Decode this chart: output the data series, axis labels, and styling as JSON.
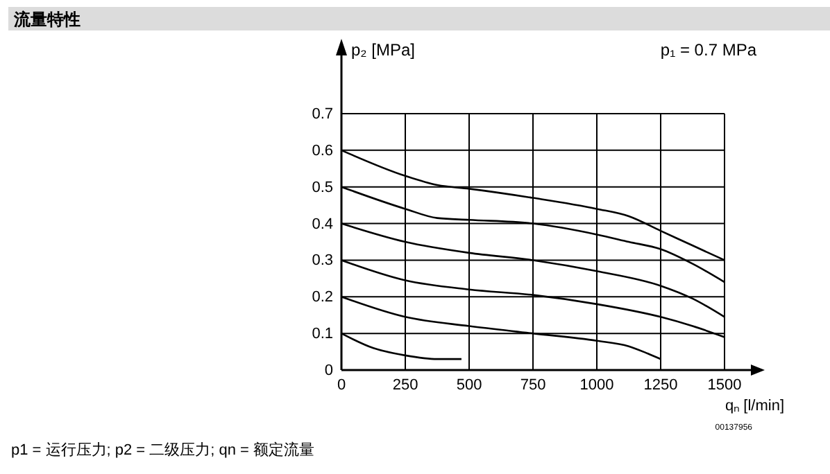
{
  "chart_data": {
    "type": "line",
    "title": "流量特性",
    "xlabel": "qₙ [l/min]",
    "ylabel": "p₂ [MPa]",
    "annotations": [
      "p₁ = 0.7 MPa",
      "00137956",
      "p1 = 运行压力; p2 = 二级压力; qn = 额定流量"
    ],
    "xlim": [
      0,
      1500
    ],
    "xticks": [
      0,
      250,
      500,
      750,
      1000,
      1250,
      1500
    ],
    "ylim": [
      0,
      0.7
    ],
    "yticks": [
      0,
      0.1,
      0.2,
      0.3,
      0.4,
      0.5,
      0.6,
      0.7
    ],
    "grid": true,
    "line_style": "solid",
    "marker": "none",
    "series": [
      {
        "color": "#000000",
        "x": [
          0,
          250,
          375,
          500,
          750,
          1000,
          1125,
          1250,
          1375,
          1500
        ],
        "values": [
          0.6,
          0.53,
          0.505,
          0.495,
          0.47,
          0.44,
          0.42,
          0.38,
          0.34,
          0.3
        ]
      },
      {
        "color": "#000000",
        "x": [
          0,
          250,
          375,
          500,
          750,
          1000,
          1125,
          1250,
          1375,
          1500
        ],
        "values": [
          0.5,
          0.44,
          0.415,
          0.41,
          0.4,
          0.37,
          0.35,
          0.33,
          0.29,
          0.24
        ]
      },
      {
        "color": "#000000",
        "x": [
          0,
          250,
          500,
          750,
          1000,
          1250,
          1375,
          1500
        ],
        "values": [
          0.4,
          0.35,
          0.32,
          0.3,
          0.27,
          0.23,
          0.195,
          0.145
        ]
      },
      {
        "color": "#000000",
        "x": [
          0,
          250,
          500,
          750,
          1000,
          1250,
          1375,
          1500
        ],
        "values": [
          0.3,
          0.245,
          0.22,
          0.205,
          0.18,
          0.145,
          0.12,
          0.09
        ]
      },
      {
        "color": "#000000",
        "x": [
          0,
          250,
          500,
          750,
          1000,
          1125,
          1200,
          1250
        ],
        "values": [
          0.2,
          0.145,
          0.12,
          0.1,
          0.08,
          0.065,
          0.045,
          0.03
        ]
      },
      {
        "color": "#000000",
        "x": [
          0,
          125,
          250,
          375,
          470
        ],
        "values": [
          0.1,
          0.06,
          0.04,
          0.03,
          0.03
        ]
      }
    ]
  }
}
